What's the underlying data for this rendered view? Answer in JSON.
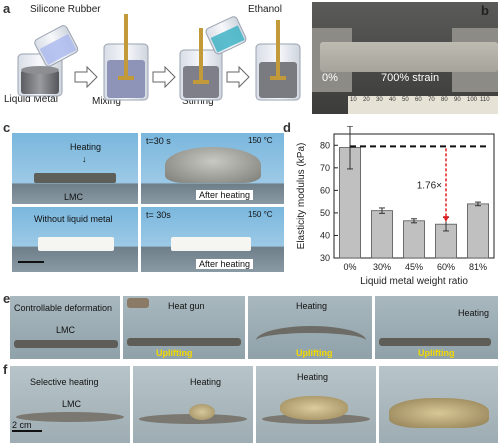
{
  "panels": {
    "a": {
      "letter": "a",
      "silicone": "Silicone Rubber",
      "ethanol": "Ethanol",
      "liquid_metal": "Liquid Metal",
      "mixing": "Mixing",
      "stirring": "Stirring"
    },
    "b": {
      "letter": "b",
      "left_label": "0%",
      "right_label": "700% strain",
      "ruler_numbers": [
        "10",
        "20",
        "30",
        "40",
        "50",
        "60",
        "70",
        "80",
        "90",
        "100",
        "110"
      ]
    },
    "c": {
      "letter": "c",
      "heating": "Heating",
      "lmc": "LMC",
      "t1": "t=30 s",
      "temp1": "150 °C",
      "after1": "After heating",
      "without": "Without liquid metal",
      "t2": "t= 30s",
      "temp2": "150 °C",
      "after2": "After heating"
    },
    "d": {
      "letter": "d"
    },
    "e": {
      "letter": "e",
      "controllable": "Controllable deformation",
      "lmc": "LMC",
      "heat_gun": "Heat gun",
      "uplifting": "Uplifting",
      "heating": "Heating"
    },
    "f": {
      "letter": "f",
      "selective": "Selective heating",
      "lmc": "LMC",
      "heating": "Heating",
      "scale": "2 cm"
    }
  },
  "chart_data": {
    "type": "bar",
    "categories": [
      "0%",
      "30%",
      "45%",
      "60%",
      "81%"
    ],
    "values": [
      79,
      51,
      46.5,
      45,
      54
    ],
    "errors": [
      9.5,
      1.2,
      0.9,
      3,
      0.8
    ],
    "xlabel": "Liquid metal weight ratio",
    "ylabel": "Elasticity modulus (kPa)",
    "ylim": [
      30,
      85
    ],
    "yticks": [
      "30",
      "40",
      "50",
      "60",
      "70",
      "80"
    ],
    "reference_line": 79.5,
    "annotation": "1.76×",
    "bar_color": "#c0c0c0",
    "arrow_color": "#e02020"
  }
}
